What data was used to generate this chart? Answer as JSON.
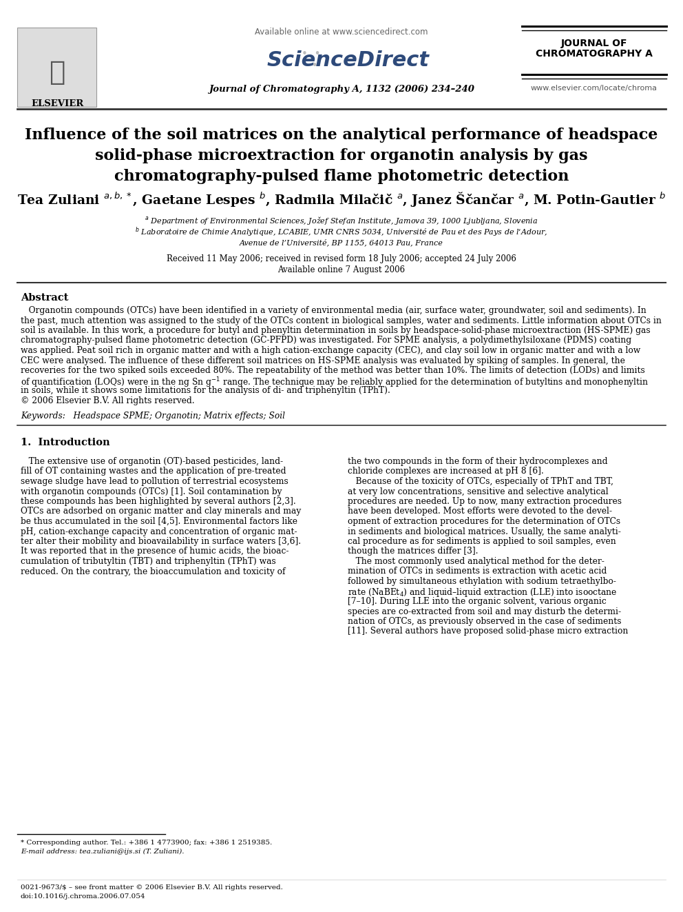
{
  "bg_color": "#ffffff",
  "header_available": "Available online at www.sciencedirect.com",
  "header_journal_info": "Journal of Chromatography A, 1132 (2006) 234–240",
  "journal_name_line1": "JOURNAL OF",
  "journal_name_line2": "CHROMATOGRAPHY A",
  "website": "www.elsevier.com/locate/chroma",
  "sciencedirect": "ScienceDirect",
  "elsevier": "ELSEVIER",
  "title_line1": "Influence of the soil matrices on the analytical performance of headspace",
  "title_line2": "solid-phase microextraction for organotin analysis by gas",
  "title_line3": "chromatography-pulsed flame photometric detection",
  "authors_line": "Tea Zuliani $^{a,b,*}$, Gaetane Lespes $^{b}$, Radmila Milačič $^{a}$, Janez Ščančar $^{a}$, M. Potin-Gautier $^{b}$",
  "affil_a": "$^{a}$ Department of Environmental Sciences, Jožef Stefan Institute, Jamova 39, 1000 Ljubljana, Slovenia",
  "affil_b1": "$^{b}$ Laboratoire de Chimie Analytique, LCABIE, UMR CNRS 5034, Université de Pau et des Pays de l’Adour,",
  "affil_b2": "Avenue de l’Université, BP 1155, 64013 Pau, France",
  "received": "Received 11 May 2006; received in revised form 18 July 2006; accepted 24 July 2006",
  "available_online": "Available online 7 August 2006",
  "abstract_title": "Abstract",
  "abstract_lines": [
    "   Organotin compounds (OTCs) have been identified in a variety of environmental media (air, surface water, groundwater, soil and sediments). In",
    "the past, much attention was assigned to the study of the OTCs content in biological samples, water and sediments. Little information about OTCs in",
    "soil is available. In this work, a procedure for butyl and phenyltin determination in soils by headspace-solid-phase microextraction (HS-SPME) gas",
    "chromatography-pulsed flame photometric detection (GC-PFPD) was investigated. For SPME analysis, a polydimethylsiloxane (PDMS) coating",
    "was applied. Peat soil rich in organic matter and with a high cation-exchange capacity (CEC), and clay soil low in organic matter and with a low",
    "CEC were analysed. The influence of these different soil matrices on HS-SPME analysis was evaluated by spiking of samples. In general, the",
    "recoveries for the two spiked soils exceeded 80%. The repeatability of the method was better than 10%. The limits of detection (LODs) and limits",
    "of quantification (LOQs) were in the ng Sn g$^{-1}$ range. The technique may be reliably applied for the determination of butyltins and monophenyltin",
    "in soils, while it shows some limitations for the analysis of di- and triphenyltin (TPhT).",
    "© 2006 Elsevier B.V. All rights reserved."
  ],
  "keywords": "Keywords:   Headspace SPME; Organotin; Matrix effects; Soil",
  "sec1_title": "1.  Introduction",
  "col1_lines": [
    "   The extensive use of organotin (OT)-based pesticides, land-",
    "fill of OT containing wastes and the application of pre-treated",
    "sewage sludge have lead to pollution of terrestrial ecosystems",
    "with organotin compounds (OTCs) [1]. Soil contamination by",
    "these compounds has been highlighted by several authors [2,3].",
    "OTCs are adsorbed on organic matter and clay minerals and may",
    "be thus accumulated in the soil [4,5]. Environmental factors like",
    "pH, cation-exchange capacity and concentration of organic mat-",
    "ter alter their mobility and bioavailability in surface waters [3,6].",
    "It was reported that in the presence of humic acids, the bioac-",
    "cumulation of tributyltin (TBT) and triphenyltin (TPhT) was",
    "reduced. On the contrary, the bioaccumulation and toxicity of"
  ],
  "col2_lines": [
    "the two compounds in the form of their hydrocomplexes and",
    "chloride complexes are increased at pH 8 [6].",
    "   Because of the toxicity of OTCs, especially of TPhT and TBT,",
    "at very low concentrations, sensitive and selective analytical",
    "procedures are needed. Up to now, many extraction procedures",
    "have been developed. Most efforts were devoted to the devel-",
    "opment of extraction procedures for the determination of OTCs",
    "in sediments and biological matrices. Usually, the same analyti-",
    "cal procedure as for sediments is applied to soil samples, even",
    "though the matrices differ [3].",
    "   The most commonly used analytical method for the deter-",
    "mination of OTCs in sediments is extraction with acetic acid",
    "followed by simultaneous ethylation with sodium tetraethylbo-",
    "rate (NaBEt$_{4}$) and liquid–liquid extraction (LLE) into isooctane",
    "[7–10]. During LLE into the organic solvent, various organic",
    "species are co-extracted from soil and may disturb the determi-",
    "nation of OTCs, as previously observed in the case of sediments",
    "[11]. Several authors have proposed solid-phase micro extraction"
  ],
  "footer1": "* Corresponding author. Tel.: +386 1 4773900; fax: +386 1 2519385.",
  "footer2": "E-mail address: tea.zuliani@ijs.si (T. Zuliani).",
  "footer3": "0021-9673/$ – see front matter © 2006 Elsevier B.V. All rights reserved.",
  "footer4": "doi:10.1016/j.chroma.2006.07.054"
}
